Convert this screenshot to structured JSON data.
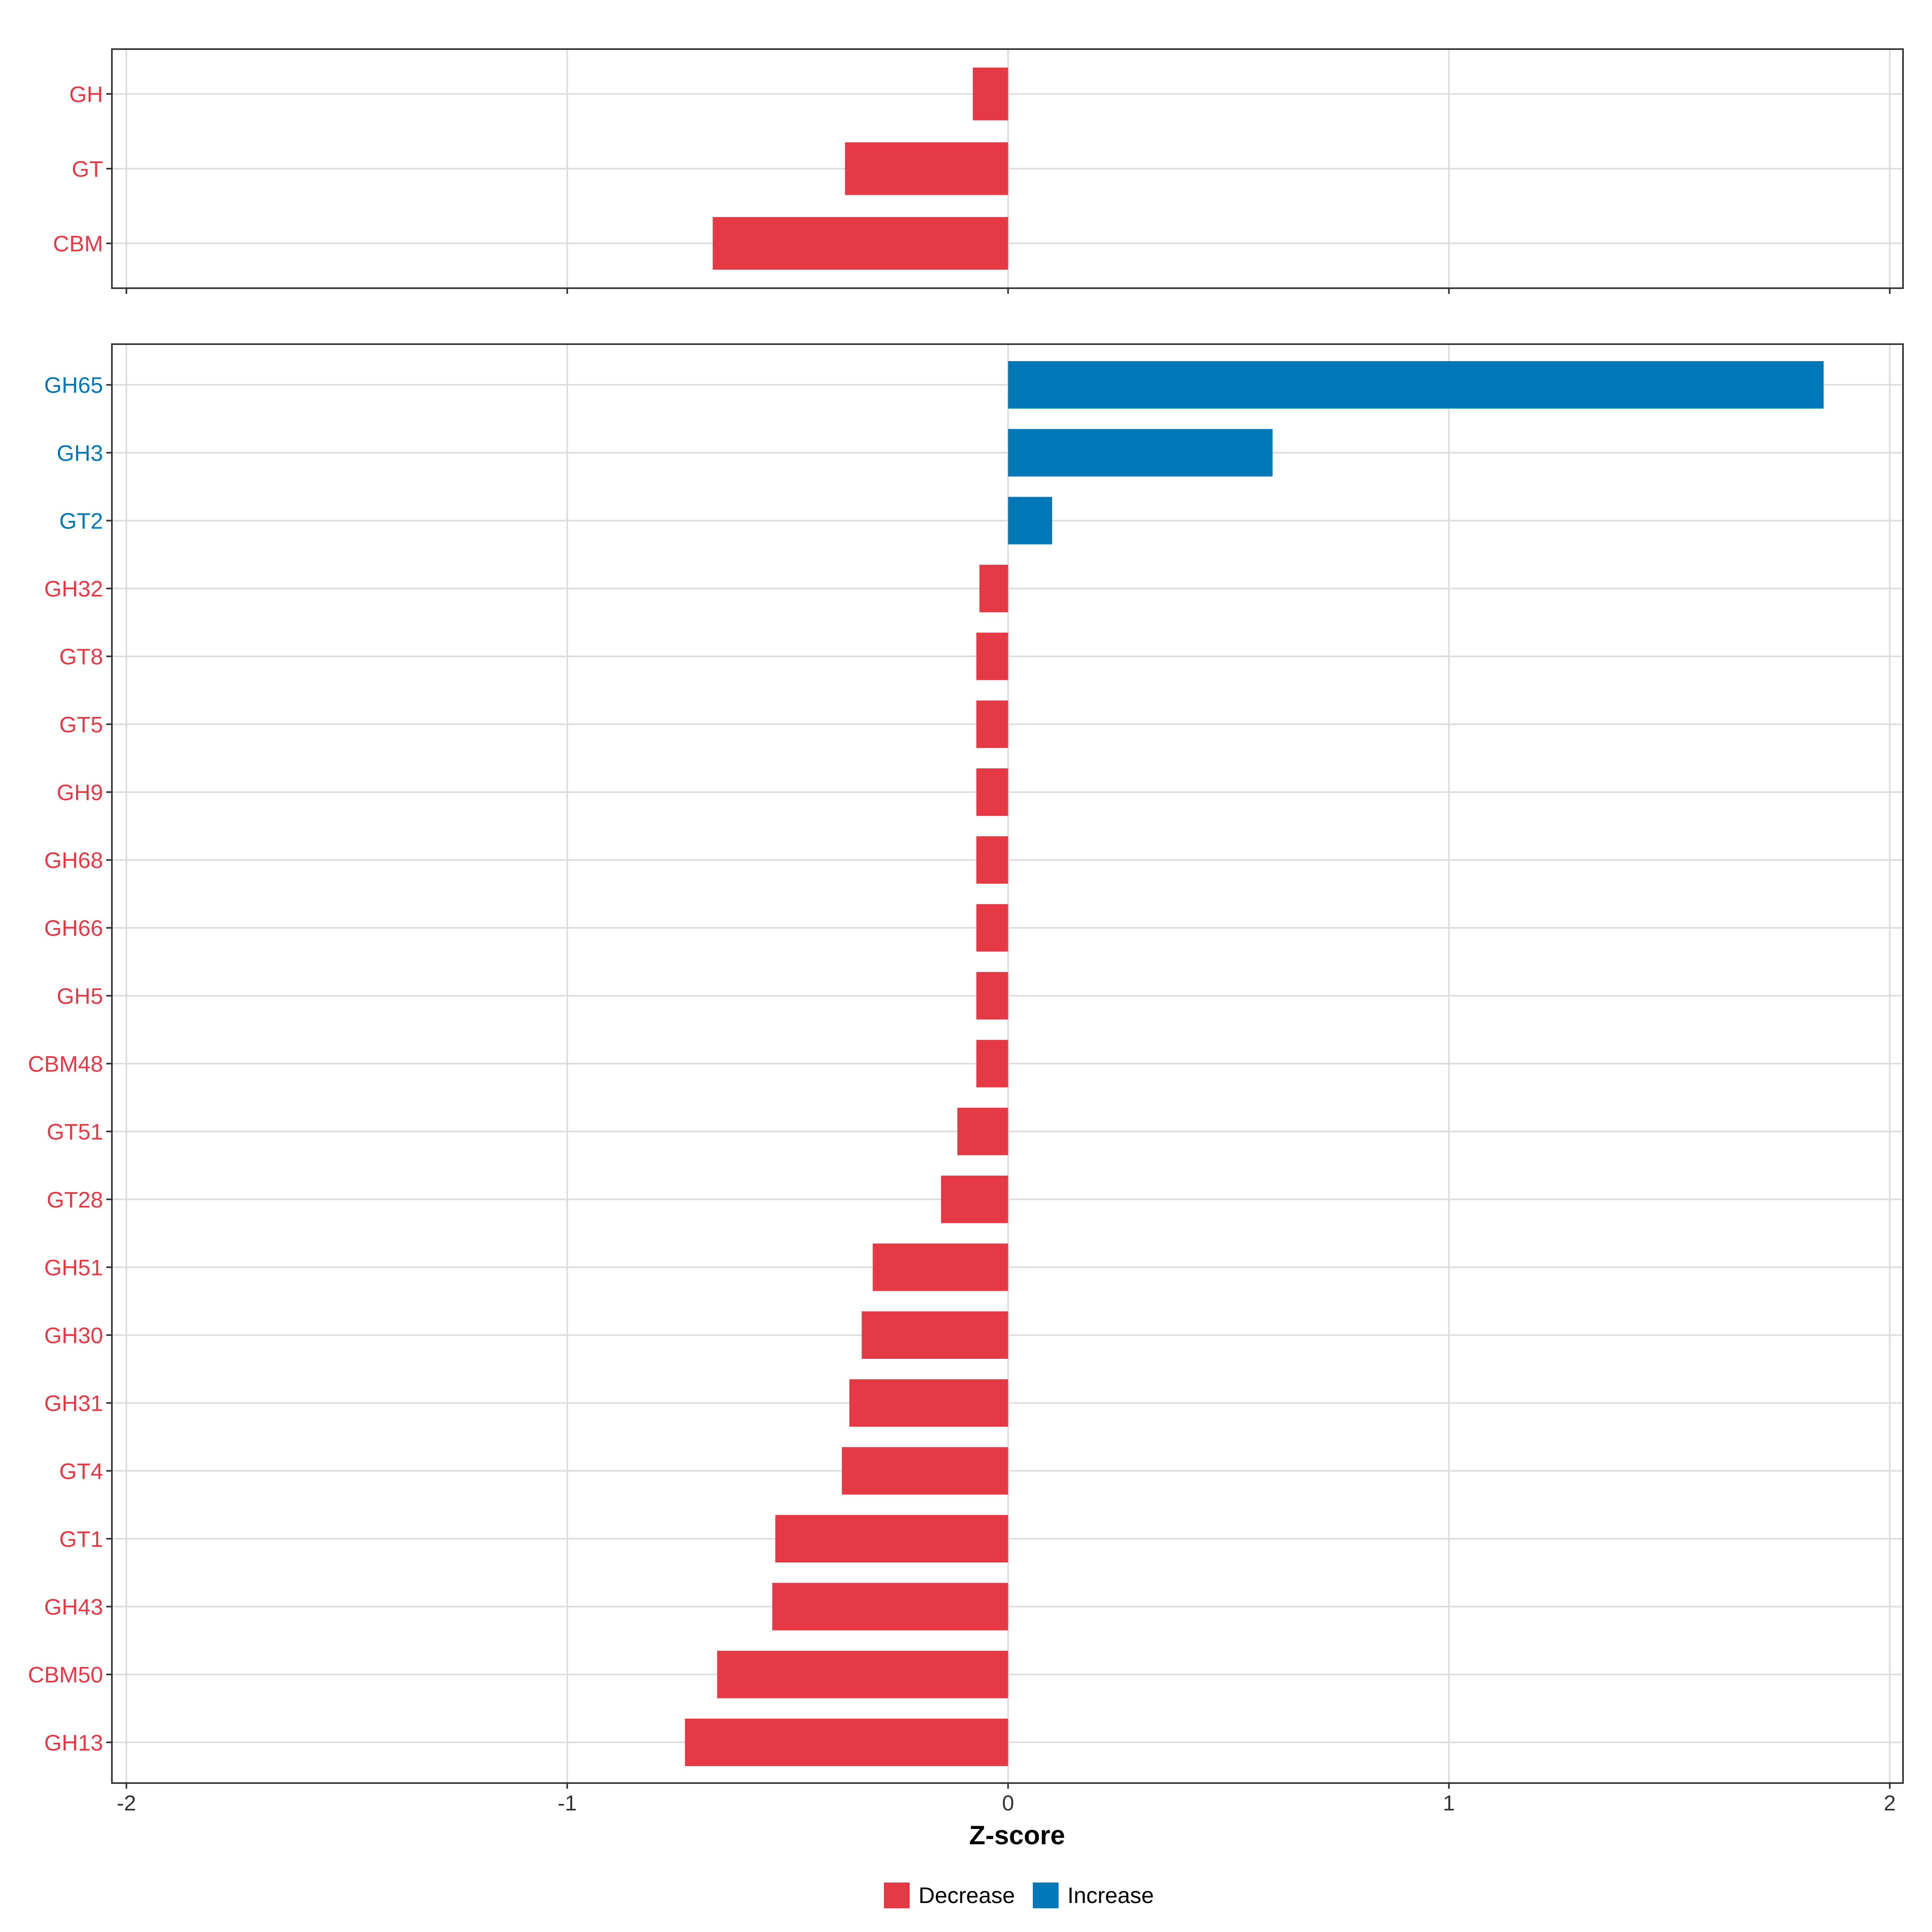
{
  "chart_data": [
    {
      "type": "bar",
      "orientation": "horizontal",
      "panel": "top",
      "categories": [
        "GH",
        "GT",
        "CBM"
      ],
      "values": [
        -0.08,
        -0.37,
        -0.67
      ],
      "groups": [
        "Decrease",
        "Decrease",
        "Decrease"
      ],
      "xlim": [
        -2,
        2
      ],
      "grid": true
    },
    {
      "type": "bar",
      "orientation": "horizontal",
      "panel": "bottom",
      "categories": [
        "GH65",
        "GH3",
        "GT2",
        "GH32",
        "GT8",
        "GT5",
        "GH9",
        "GH68",
        "GH66",
        "GH5",
        "CBM48",
        "GT51",
        "GT28",
        "GH51",
        "GH30",
        "GH31",
        "GT4",
        "GT1",
        "GH43",
        "CBM50",
        "GH13"
      ],
      "values": [
        1.85,
        0.6,
        0.1,
        -0.065,
        -0.072,
        -0.072,
        -0.072,
        -0.072,
        -0.072,
        -0.072,
        -0.072,
        -0.115,
        -0.152,
        -0.307,
        -0.332,
        -0.36,
        -0.377,
        -0.528,
        -0.535,
        -0.66,
        -0.733
      ],
      "groups": [
        "Increase",
        "Increase",
        "Increase",
        "Decrease",
        "Decrease",
        "Decrease",
        "Decrease",
        "Decrease",
        "Decrease",
        "Decrease",
        "Decrease",
        "Decrease",
        "Decrease",
        "Decrease",
        "Decrease",
        "Decrease",
        "Decrease",
        "Decrease",
        "Decrease",
        "Decrease",
        "Decrease"
      ],
      "xlim": [
        -2,
        2
      ],
      "grid": true
    }
  ],
  "x_ticks": [
    "-2",
    "-1",
    "0",
    "1",
    "2"
  ],
  "x_tick_values": [
    -2,
    -1,
    0,
    1,
    2
  ],
  "xlabel": "Z-score",
  "legend": {
    "position": "bottom",
    "items": [
      {
        "label": "Decrease",
        "color": "#e63946"
      },
      {
        "label": "Increase",
        "color": "#0077b6"
      }
    ]
  },
  "colors": {
    "Decrease": "#e63946",
    "Increase": "#0077b6"
  }
}
